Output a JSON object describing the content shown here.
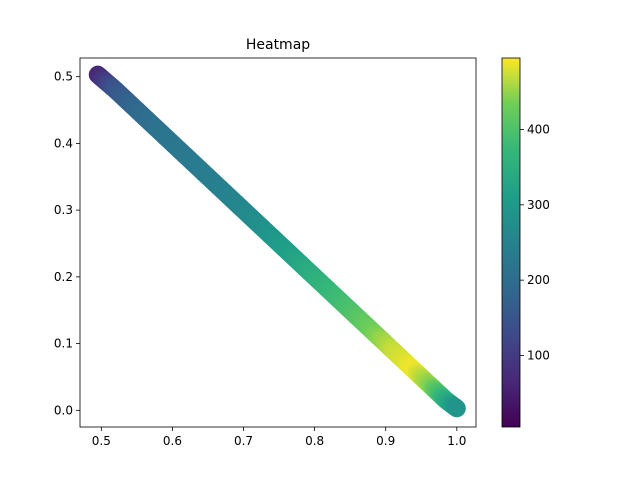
{
  "chart_data": {
    "type": "scatter",
    "title": "Heatmap",
    "xlabel": "",
    "ylabel": "",
    "xlim": [
      0.47,
      1.027
    ],
    "ylim": [
      -0.025,
      0.528
    ],
    "xticks": [
      0.5,
      0.6,
      0.7,
      0.8,
      0.9,
      1.0
    ],
    "xtick_labels": [
      "0.5",
      "0.6",
      "0.7",
      "0.8",
      "0.9",
      "1.0"
    ],
    "yticks": [
      0.0,
      0.1,
      0.2,
      0.3,
      0.4,
      0.5
    ],
    "ytick_labels": [
      "0.0",
      "0.1",
      "0.2",
      "0.3",
      "0.4",
      "0.5"
    ],
    "grid": false,
    "colormap": "viridis",
    "colorbar": {
      "range": [
        5,
        495
      ],
      "ticks": [
        100,
        200,
        300,
        400
      ],
      "tick_labels": [
        "100",
        "200",
        "300",
        "400"
      ]
    },
    "points": [
      {
        "x": 0.495,
        "y": 0.503,
        "value": 60
      },
      {
        "x": 0.52,
        "y": 0.48,
        "value": 150
      },
      {
        "x": 0.55,
        "y": 0.45,
        "value": 190
      },
      {
        "x": 0.58,
        "y": 0.42,
        "value": 215
      },
      {
        "x": 0.61,
        "y": 0.39,
        "value": 225
      },
      {
        "x": 0.64,
        "y": 0.36,
        "value": 235
      },
      {
        "x": 0.67,
        "y": 0.33,
        "value": 245
      },
      {
        "x": 0.7,
        "y": 0.3,
        "value": 260
      },
      {
        "x": 0.73,
        "y": 0.27,
        "value": 285
      },
      {
        "x": 0.76,
        "y": 0.24,
        "value": 310
      },
      {
        "x": 0.79,
        "y": 0.21,
        "value": 340
      },
      {
        "x": 0.82,
        "y": 0.18,
        "value": 370
      },
      {
        "x": 0.85,
        "y": 0.15,
        "value": 395
      },
      {
        "x": 0.88,
        "y": 0.12,
        "value": 430
      },
      {
        "x": 0.91,
        "y": 0.09,
        "value": 470
      },
      {
        "x": 0.94,
        "y": 0.06,
        "value": 490
      },
      {
        "x": 0.965,
        "y": 0.035,
        "value": 440
      },
      {
        "x": 0.985,
        "y": 0.015,
        "value": 350
      },
      {
        "x": 1.0,
        "y": 0.003,
        "value": 290
      }
    ]
  }
}
